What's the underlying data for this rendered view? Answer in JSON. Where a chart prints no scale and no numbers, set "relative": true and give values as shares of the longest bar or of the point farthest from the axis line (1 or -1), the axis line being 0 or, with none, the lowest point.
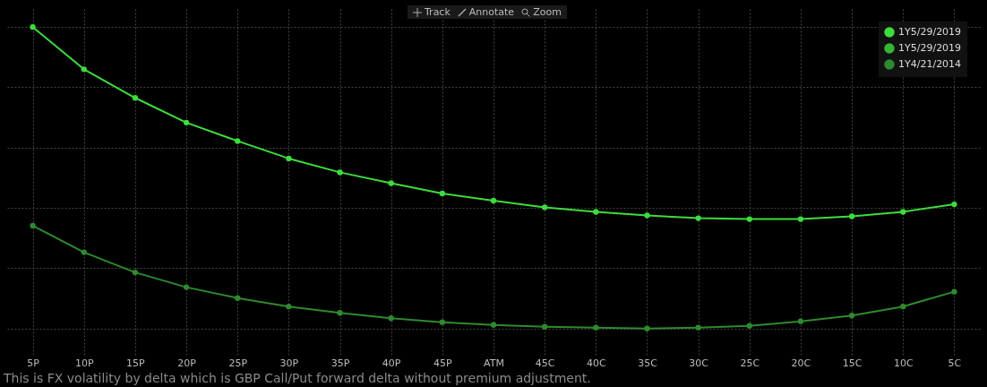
{
  "chart_data": {
    "type": "line",
    "relative": true,
    "grid": true,
    "legend": "top right",
    "marker": "circle",
    "line_style": "solid",
    "categories": [
      "5P",
      "10P",
      "15P",
      "20P",
      "25P",
      "30P",
      "35P",
      "40P",
      "45P",
      "ATM",
      "45C",
      "40C",
      "35C",
      "30C",
      "25C",
      "20C",
      "15C",
      "10C",
      "5C"
    ],
    "series": [
      {
        "name": "1Y5/29/2019",
        "color": "#3ddc3d",
        "values": [
          1.0,
          0.86,
          0.765,
          0.683,
          0.622,
          0.564,
          0.518,
          0.482,
          0.448,
          0.424,
          0.402,
          0.387,
          0.375,
          0.366,
          0.363,
          0.363,
          0.372,
          0.387,
          0.412
        ]
      },
      {
        "name": "1Y5/29/2019",
        "color": "#35b535",
        "values": [
          null,
          null,
          null,
          null,
          null,
          null,
          null,
          null,
          null,
          null,
          null,
          null,
          null,
          null,
          null,
          null,
          null,
          null,
          null
        ]
      },
      {
        "name": "1Y4/21/2014",
        "color": "#2e8a2e",
        "values": [
          0.341,
          0.253,
          0.186,
          0.137,
          0.101,
          0.073,
          0.052,
          0.034,
          0.021,
          0.012,
          0.006,
          0.003,
          0.0,
          0.003,
          0.009,
          0.024,
          0.043,
          0.073,
          0.122
        ]
      }
    ],
    "annotations": [
      "This is FX volatility by delta which is GBP Call/Put forward delta without premium adjustment.",
      "Track",
      "Annotate",
      "Zoom"
    ]
  }
}
